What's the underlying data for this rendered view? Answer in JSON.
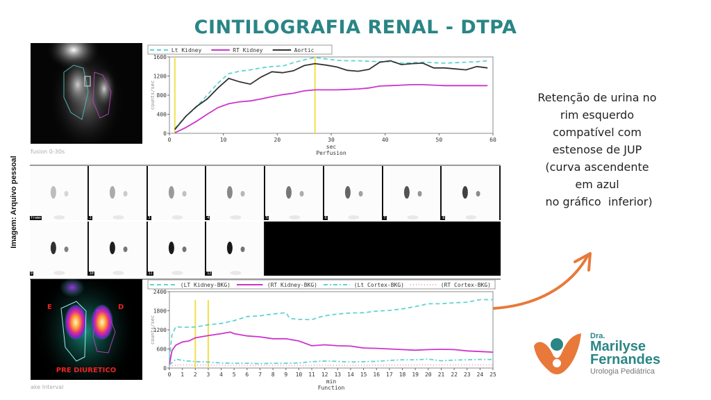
{
  "title": "CINTILOGRAFIA RENAL - DTPA",
  "credit": "Imagem: Arquivo pessoal",
  "top_scan": {
    "caption": "fusion 0-30s"
  },
  "frames": {
    "first_label": "frame",
    "labels": [
      "",
      "2",
      "3",
      "4",
      "5",
      "6",
      "7",
      "8",
      "9",
      "10",
      "11",
      "12"
    ]
  },
  "bottom_scan": {
    "left_marker": "E",
    "right_marker": "D",
    "overlay": "PRE DIURETICO",
    "caption": "ake Interval"
  },
  "note": {
    "lines": [
      "Retenção de urina no",
      "rim esquerdo",
      "compatível com",
      "estenose de JUP",
      "(curva ascendente",
      "em azul",
      " no gráfico  inferior)"
    ],
    "arrow_color": "#e8793a"
  },
  "logo": {
    "prefix": "Dra.",
    "name_line1": "Marilyse",
    "name_line2": "Fernandes",
    "subtitle": "Urologia Pediátrica"
  },
  "colors": {
    "teal": "#2a8585",
    "orange": "#e8793a",
    "lt_kidney": "#5fd3d3",
    "rt_kidney": "#cc33cc",
    "aortic": "#333333",
    "marker": "#f0e04a"
  },
  "chart_data": [
    {
      "type": "line",
      "title": "Perfusion",
      "xlabel": "sec",
      "ylabel": "counts/sec",
      "xlim": [
        0,
        60
      ],
      "ylim": [
        0,
        1600
      ],
      "xticks": [
        "0",
        "10",
        "20",
        "30",
        "40",
        "50",
        "60"
      ],
      "yticks": [
        "0",
        "400",
        "800",
        "1200",
        "1600"
      ],
      "markers_x": [
        1,
        27
      ],
      "legend": "top",
      "series": [
        {
          "name": "Lt Kidney",
          "style": "dashed",
          "color": "#5fd3d3",
          "x": [
            1,
            3,
            5,
            7,
            9,
            11,
            13,
            15,
            17,
            19,
            21,
            23,
            25,
            27,
            29,
            31,
            33,
            35,
            37,
            39,
            41,
            43,
            45,
            47,
            49,
            51,
            53,
            55,
            57,
            59
          ],
          "values": [
            100,
            350,
            550,
            800,
            1050,
            1250,
            1300,
            1330,
            1370,
            1400,
            1410,
            1480,
            1540,
            1590,
            1560,
            1530,
            1520,
            1520,
            1510,
            1500,
            1500,
            1470,
            1480,
            1490,
            1480,
            1470,
            1480,
            1490,
            1500,
            1520
          ]
        },
        {
          "name": "RT Kidney",
          "style": "solid",
          "color": "#cc33cc",
          "x": [
            1,
            3,
            5,
            7,
            9,
            11,
            13,
            15,
            17,
            19,
            21,
            23,
            25,
            27,
            29,
            31,
            33,
            35,
            37,
            39,
            41,
            43,
            45,
            47,
            49,
            51,
            53,
            55,
            57,
            59
          ],
          "values": [
            10,
            120,
            250,
            400,
            540,
            620,
            660,
            680,
            720,
            770,
            810,
            840,
            890,
            910,
            910,
            910,
            920,
            930,
            950,
            990,
            1000,
            1010,
            1020,
            1020,
            1010,
            1000,
            1000,
            1000,
            1000,
            1000
          ]
        },
        {
          "name": "Aortic",
          "style": "solid",
          "color": "#333333",
          "x": [
            1,
            3,
            5,
            7,
            9,
            11,
            13,
            15,
            17,
            19,
            21,
            23,
            25,
            27,
            29,
            31,
            33,
            35,
            37,
            39,
            41,
            43,
            45,
            47,
            49,
            51,
            53,
            55,
            57,
            59
          ],
          "values": [
            80,
            350,
            560,
            720,
            950,
            1150,
            1080,
            1030,
            1180,
            1290,
            1270,
            1310,
            1420,
            1460,
            1430,
            1390,
            1320,
            1300,
            1340,
            1490,
            1520,
            1440,
            1460,
            1470,
            1370,
            1370,
            1350,
            1330,
            1400,
            1370
          ]
        }
      ]
    },
    {
      "type": "line",
      "title": "Function",
      "xlabel": "min",
      "ylabel": "counts/sec",
      "xlim": [
        0,
        25
      ],
      "ylim": [
        0,
        2400
      ],
      "xticks": [
        "0",
        "1",
        "2",
        "3",
        "4",
        "5",
        "6",
        "7",
        "8",
        "9",
        "10",
        "11",
        "12",
        "13",
        "14",
        "15",
        "16",
        "17",
        "18",
        "19",
        "20",
        "21",
        "22",
        "23",
        "24",
        "25"
      ],
      "yticks": [
        "0",
        "600",
        "1200",
        "1800",
        "2400"
      ],
      "markers_x": [
        2,
        3
      ],
      "legend": "top",
      "series": [
        {
          "name": "(LT Kidney-BKG)",
          "style": "dashed",
          "color": "#5fd3d3",
          "x": [
            0,
            0.2,
            0.5,
            1,
            2,
            3,
            4,
            5,
            6,
            7,
            8,
            9,
            9.3,
            10,
            11,
            11.5,
            12,
            13,
            14,
            15,
            16,
            17,
            18,
            19,
            20,
            21,
            22,
            23,
            24,
            25
          ],
          "values": [
            300,
            1050,
            1300,
            1280,
            1290,
            1360,
            1400,
            1490,
            1620,
            1640,
            1700,
            1740,
            1560,
            1530,
            1520,
            1590,
            1640,
            1700,
            1730,
            1740,
            1790,
            1810,
            1860,
            1930,
            2020,
            2020,
            2050,
            2070,
            2150,
            2150
          ]
        },
        {
          "name": "(RT Kidney-BKG)",
          "style": "solid",
          "color": "#cc33cc",
          "x": [
            0,
            0.2,
            0.5,
            1,
            1.5,
            2,
            3,
            4,
            4.7,
            5,
            6,
            7,
            8,
            9,
            10,
            11,
            12,
            13,
            14,
            15,
            16,
            17,
            18,
            19,
            20,
            21,
            22,
            23,
            24,
            25
          ],
          "values": [
            100,
            550,
            720,
            820,
            850,
            950,
            1020,
            1080,
            1130,
            1080,
            1010,
            980,
            920,
            920,
            850,
            700,
            730,
            700,
            690,
            630,
            620,
            600,
            580,
            560,
            580,
            590,
            580,
            540,
            520,
            500
          ]
        },
        {
          "name": "(Lt Cortex-BKG)",
          "style": "dashdot",
          "color": "#5fd3d3",
          "x": [
            0,
            0.5,
            1,
            2,
            3,
            4,
            5,
            6,
            7,
            8,
            9,
            10,
            11,
            12,
            13,
            14,
            15,
            16,
            17,
            18,
            19,
            20,
            21,
            22,
            23,
            24,
            25
          ],
          "values": [
            100,
            280,
            240,
            200,
            190,
            160,
            150,
            150,
            140,
            150,
            150,
            160,
            200,
            220,
            210,
            190,
            200,
            210,
            240,
            260,
            260,
            280,
            230,
            250,
            260,
            270,
            270
          ]
        },
        {
          "name": "(RT Cortex-BKG)",
          "style": "dotted",
          "color": "#f0a0c0",
          "x": [
            0,
            1,
            5,
            10,
            15,
            20,
            25
          ],
          "values": [
            80,
            100,
            90,
            90,
            90,
            100,
            100
          ]
        }
      ]
    }
  ]
}
